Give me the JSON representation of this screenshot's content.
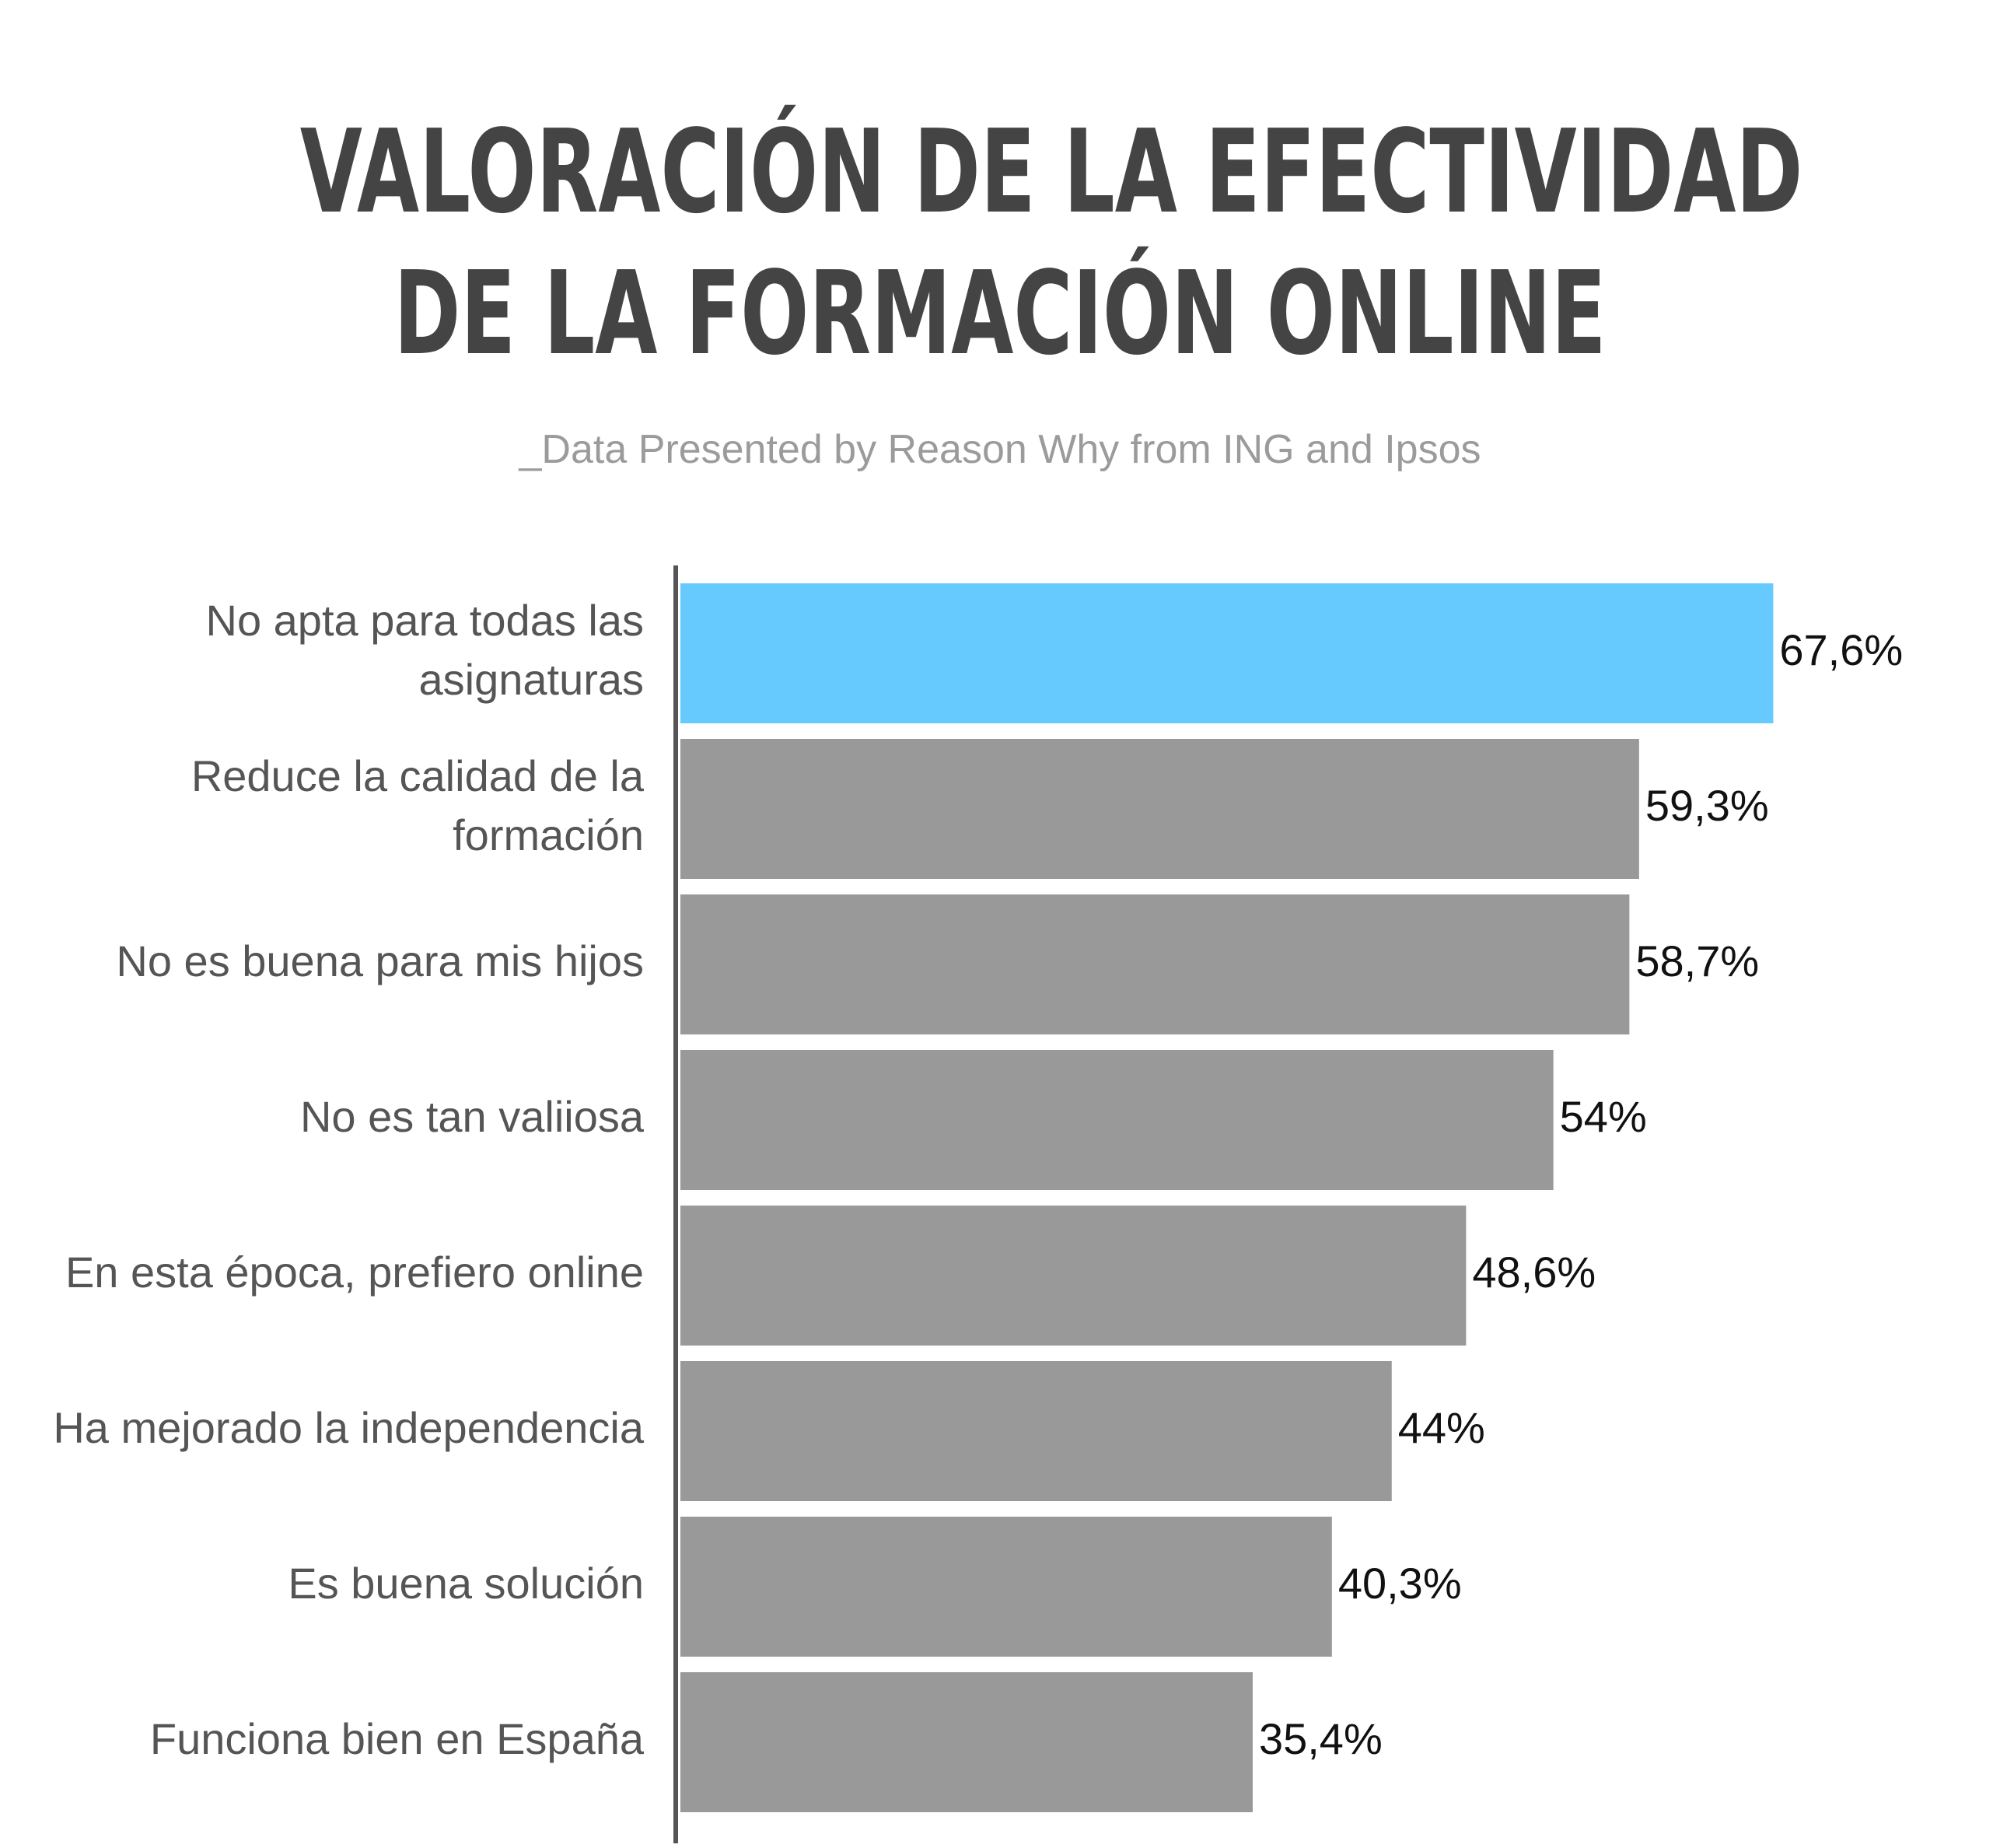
{
  "title_lines": [
    "VALORACIÓN DE LA EFECTIVIDAD",
    "DE LA FORMACIÓN ONLINE"
  ],
  "subtitle": "_Data Presented by Reason Why from ING and Ipsos",
  "colors": {
    "highlight": "#66CAFF",
    "bar": "#999999",
    "axis": "#555555",
    "title": "#444444",
    "subtitle": "#9B9B9B",
    "category_text": "#555555",
    "value_text": "#111111"
  },
  "chart_data": {
    "type": "bar",
    "orientation": "horizontal",
    "title": "VALORACIÓN DE LA EFECTIVIDAD DE LA FORMACIÓN ONLINE",
    "subtitle": "_Data Presented by Reason Why from ING and Ipsos",
    "categories": [
      [
        "No apta para todas las",
        "asignaturas"
      ],
      [
        "Reduce la calidad de la",
        "formación"
      ],
      [
        "No es buena para mis hijos"
      ],
      [
        "No es tan valiiosa"
      ],
      [
        "En esta época, prefiero online"
      ],
      [
        "Ha mejorado la independencia"
      ],
      [
        "Es buena solución"
      ],
      [
        "Funciona bien en España"
      ]
    ],
    "values": [
      67.6,
      59.3,
      58.7,
      54,
      48.6,
      44,
      40.3,
      35.4
    ],
    "value_labels": [
      "67,6%",
      "59,3%",
      "58,7%",
      "54%",
      "48,6%",
      "44%",
      "40,3%",
      "35,4%"
    ],
    "highlight_index": 0,
    "xlim": [
      0,
      100
    ],
    "grid": false,
    "legend": "none"
  }
}
